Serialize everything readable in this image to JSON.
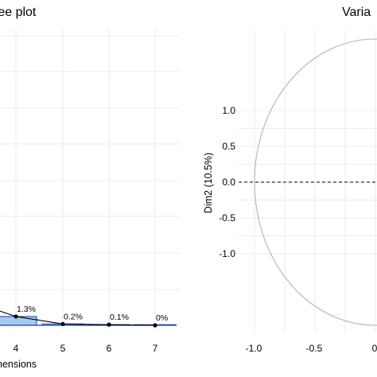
{
  "chart_data": [
    {
      "type": "bar",
      "title": "ree plot",
      "xlabel": "nensions",
      "categories": [
        "4",
        "5",
        "6",
        "7"
      ],
      "values": [
        1.3,
        0.2,
        0.1,
        0
      ],
      "data_labels": [
        "1.3%",
        "0.2%",
        "0.1%",
        "0%"
      ],
      "bar_color": "#a6c8f0",
      "bar_border": "#1f3ea8",
      "line_color": "#000000",
      "grid": true
    },
    {
      "type": "scatter",
      "title": "Varia",
      "xlabel": "",
      "ylabel": "Dim2 (10.5%)",
      "x_ticks": [
        "-1.0",
        "-0.5",
        "0"
      ],
      "y_ticks": [
        "1.0",
        "0.5",
        "0.0",
        "-0.5",
        "-1.0"
      ],
      "xlim": [
        -1.0,
        0.0
      ],
      "ylim": [
        -1.0,
        1.0
      ],
      "circle": {
        "radius": 1.0,
        "color": "#b3b3b3"
      },
      "reference_line_y": 0.0,
      "grid": true
    }
  ]
}
